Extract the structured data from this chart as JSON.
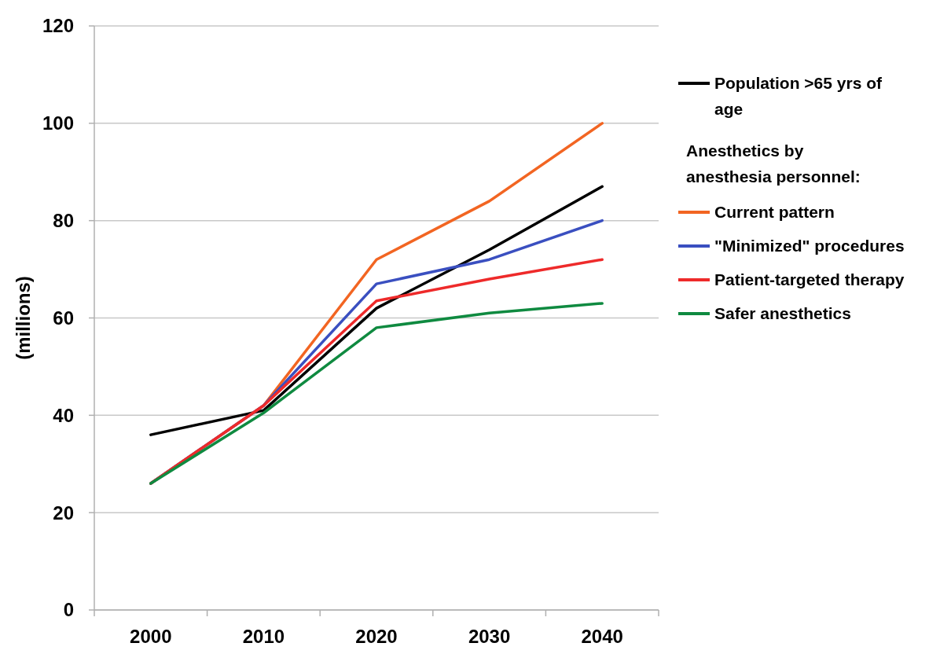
{
  "chart_data": {
    "type": "line",
    "ylabel": "(millions)",
    "categories": [
      "2000",
      "2010",
      "2020",
      "2030",
      "2040"
    ],
    "ylim": [
      0,
      120
    ],
    "yticks": [
      0,
      20,
      40,
      60,
      80,
      100,
      120
    ],
    "grid": "y",
    "legend": "right",
    "legend_title": "Anesthetics by anesthesia personnel:",
    "marker": "none",
    "line_style": "solid",
    "series": [
      {
        "name": "Population >65 yrs of age",
        "color": "#000000",
        "values": [
          36,
          41,
          62,
          74,
          87
        ]
      },
      {
        "name": "Current pattern",
        "color": "#f26522",
        "values": [
          26,
          42,
          72,
          84,
          100
        ]
      },
      {
        "name": "\"Minimized\" procedures",
        "color": "#3a4fc0",
        "values": [
          26,
          42,
          67,
          72,
          80
        ]
      },
      {
        "name": "Patient-targeted therapy",
        "color": "#ee2a2a",
        "values": [
          26,
          42,
          63.5,
          68,
          72
        ]
      },
      {
        "name": "Safer anesthetics",
        "color": "#0f8a40",
        "values": [
          26,
          40.5,
          58,
          61,
          63
        ]
      }
    ]
  }
}
